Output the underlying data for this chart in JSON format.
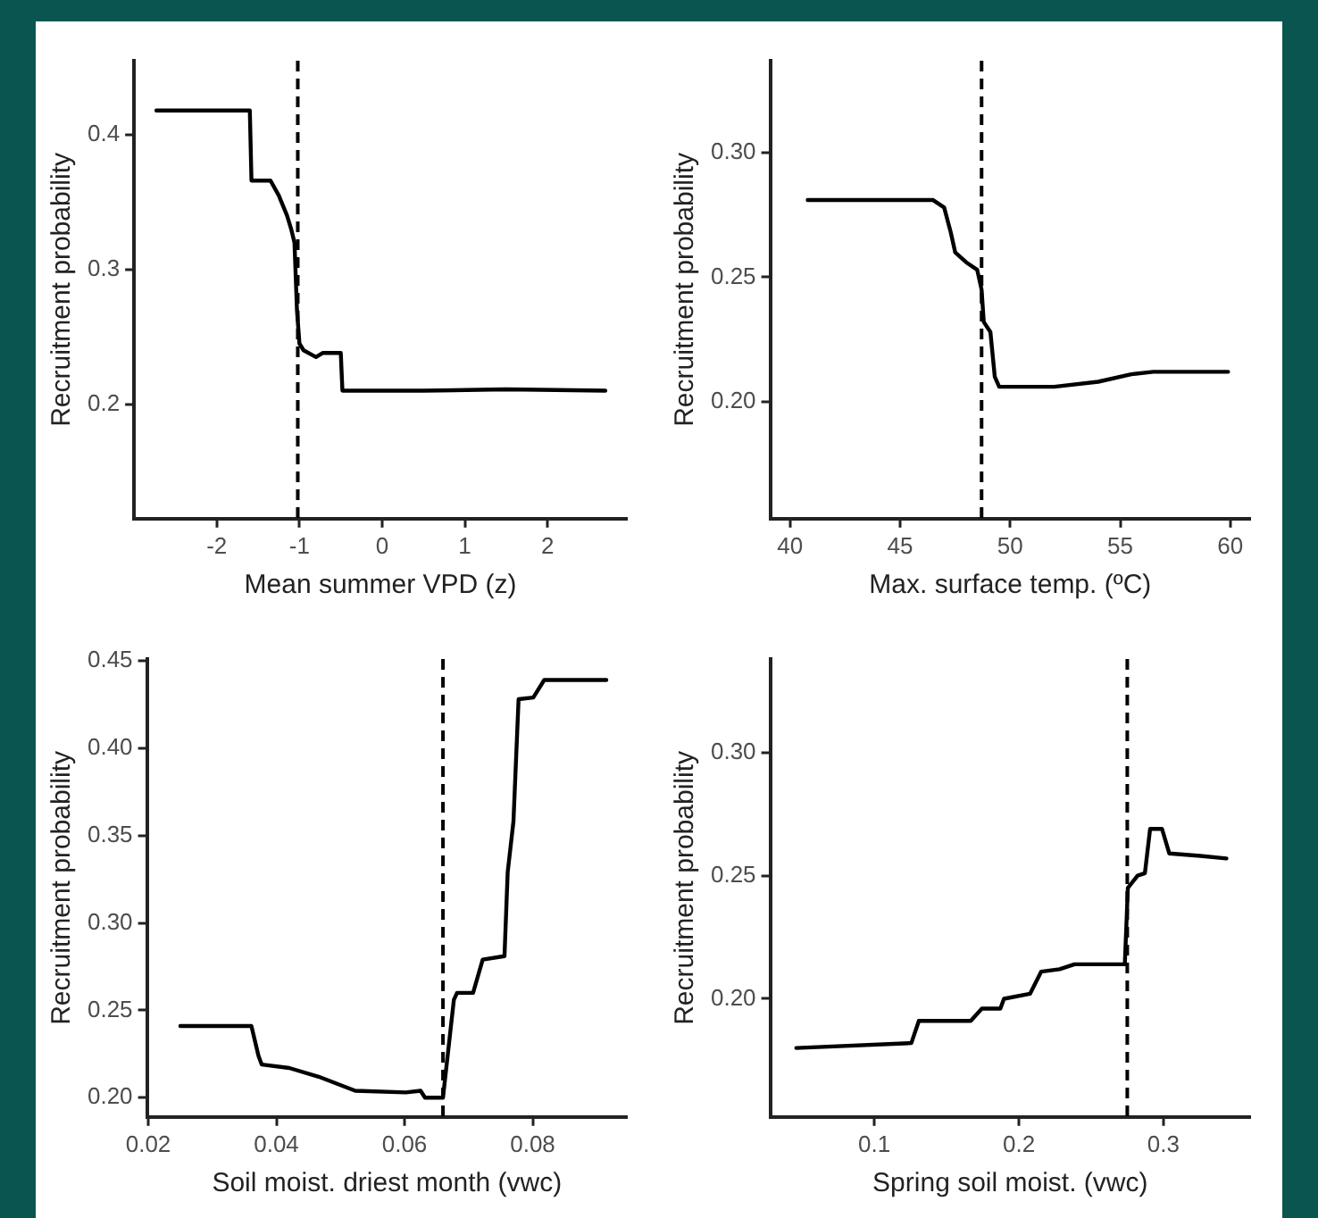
{
  "chart_data": [
    {
      "type": "line",
      "xlabel": "Mean summer VPD (z)",
      "ylabel": "Recruitment probability",
      "color": "#000000",
      "grid": false,
      "legend": false,
      "marker": "none",
      "line_style": "solid",
      "x": [
        -2.73,
        -1.6,
        -1.58,
        -1.35,
        -1.25,
        -1.15,
        -1.1,
        -1.06,
        -1.03,
        -1.0,
        -0.95,
        -0.8,
        -0.72,
        -0.5,
        -0.48,
        0.5,
        1.5,
        2.7
      ],
      "values": [
        0.418,
        0.418,
        0.366,
        0.366,
        0.355,
        0.34,
        0.33,
        0.32,
        0.27,
        0.245,
        0.24,
        0.235,
        0.238,
        0.238,
        0.21,
        0.21,
        0.211,
        0.21
      ],
      "xlim": [
        -3.0,
        2.96
      ],
      "ylim": [
        0.115,
        0.455
      ],
      "xticks": [
        -2,
        -1,
        0,
        1,
        2
      ],
      "yticks": [
        0.2,
        0.3,
        0.4
      ],
      "ref_lines": [
        {
          "axis": "x",
          "value": -1.02,
          "line_style": "dashed"
        }
      ]
    },
    {
      "type": "line",
      "xlabel": "Max. surface temp. (ºC)",
      "ylabel": "Recruitment probability",
      "color": "#000000",
      "grid": false,
      "legend": false,
      "marker": "none",
      "line_style": "solid",
      "x": [
        40.8,
        46.5,
        47.0,
        47.3,
        47.5,
        48.0,
        48.5,
        48.7,
        48.8,
        49.1,
        49.3,
        49.5,
        52,
        54,
        55.5,
        56.5,
        59.9
      ],
      "values": [
        0.281,
        0.281,
        0.278,
        0.268,
        0.26,
        0.256,
        0.253,
        0.245,
        0.232,
        0.228,
        0.21,
        0.206,
        0.206,
        0.208,
        0.211,
        0.212,
        0.212
      ],
      "xlim": [
        39.1,
        60.9
      ],
      "ylim": [
        0.153,
        0.337
      ],
      "xticks": [
        40,
        45,
        50,
        55,
        60
      ],
      "yticks": [
        {
          "value": 0.2,
          "label": "0.20"
        },
        {
          "value": 0.25,
          "label": "0.25"
        },
        {
          "value": 0.3,
          "label": "0.30"
        }
      ],
      "ref_lines": [
        {
          "axis": "x",
          "value": 48.7,
          "line_style": "dashed"
        }
      ]
    },
    {
      "type": "line",
      "xlabel": "Soil moist. driest month (vwc)",
      "ylabel": "Recruitment probability",
      "color": "#000000",
      "grid": false,
      "legend": false,
      "marker": "none",
      "line_style": "solid",
      "x": [
        0.025,
        0.0361,
        0.0372,
        0.0377,
        0.042,
        0.0466,
        0.0523,
        0.0602,
        0.0625,
        0.0632,
        0.066,
        0.067,
        0.0677,
        0.0682,
        0.0707,
        0.0722,
        0.0756,
        0.0761,
        0.077,
        0.0778,
        0.0801,
        0.0818,
        0.0915
      ],
      "values": [
        0.241,
        0.241,
        0.224,
        0.219,
        0.217,
        0.212,
        0.204,
        0.203,
        0.204,
        0.2,
        0.2,
        0.233,
        0.256,
        0.26,
        0.26,
        0.279,
        0.281,
        0.329,
        0.358,
        0.428,
        0.429,
        0.439,
        0.439
      ],
      "xlim": [
        0.0198,
        0.0947
      ],
      "ylim": [
        0.189,
        0.451
      ],
      "xticks": [
        {
          "value": 0.02,
          "label": "0.02"
        },
        {
          "value": 0.04,
          "label": "0.04"
        },
        {
          "value": 0.06,
          "label": "0.06"
        },
        {
          "value": 0.08,
          "label": "0.08"
        }
      ],
      "yticks": [
        {
          "value": 0.2,
          "label": "0.20"
        },
        {
          "value": 0.25,
          "label": "0.25"
        },
        {
          "value": 0.3,
          "label": "0.30"
        },
        {
          "value": 0.35,
          "label": "0.35"
        },
        {
          "value": 0.4,
          "label": "0.40"
        },
        {
          "value": 0.45,
          "label": "0.45"
        }
      ],
      "ref_lines": [
        {
          "axis": "x",
          "value": 0.066,
          "line_style": "dashed"
        }
      ]
    },
    {
      "type": "line",
      "xlabel": "Spring soil moist. (vwc)",
      "ylabel": "Recruitment probability",
      "color": "#000000",
      "grid": false,
      "legend": false,
      "marker": "none",
      "line_style": "solid",
      "x": [
        0.046,
        0.1256,
        0.1308,
        0.1667,
        0.1744,
        0.1872,
        0.1897,
        0.2077,
        0.2154,
        0.2282,
        0.2385,
        0.2733,
        0.2754,
        0.2821,
        0.2872,
        0.2908,
        0.299,
        0.3041,
        0.3256,
        0.3436
      ],
      "values": [
        0.18,
        0.182,
        0.191,
        0.191,
        0.196,
        0.196,
        0.2,
        0.202,
        0.211,
        0.212,
        0.214,
        0.214,
        0.245,
        0.25,
        0.251,
        0.269,
        0.269,
        0.259,
        0.258,
        0.257
      ],
      "xlim": [
        0.028,
        0.36
      ],
      "ylim": [
        0.152,
        0.338
      ],
      "xticks": [
        0.1,
        0.2,
        0.3
      ],
      "yticks": [
        {
          "value": 0.2,
          "label": "0.20"
        },
        {
          "value": 0.25,
          "label": "0.25"
        },
        {
          "value": 0.3,
          "label": "0.30"
        }
      ],
      "ref_lines": [
        {
          "axis": "x",
          "value": 0.275,
          "line_style": "dashed"
        }
      ]
    }
  ]
}
